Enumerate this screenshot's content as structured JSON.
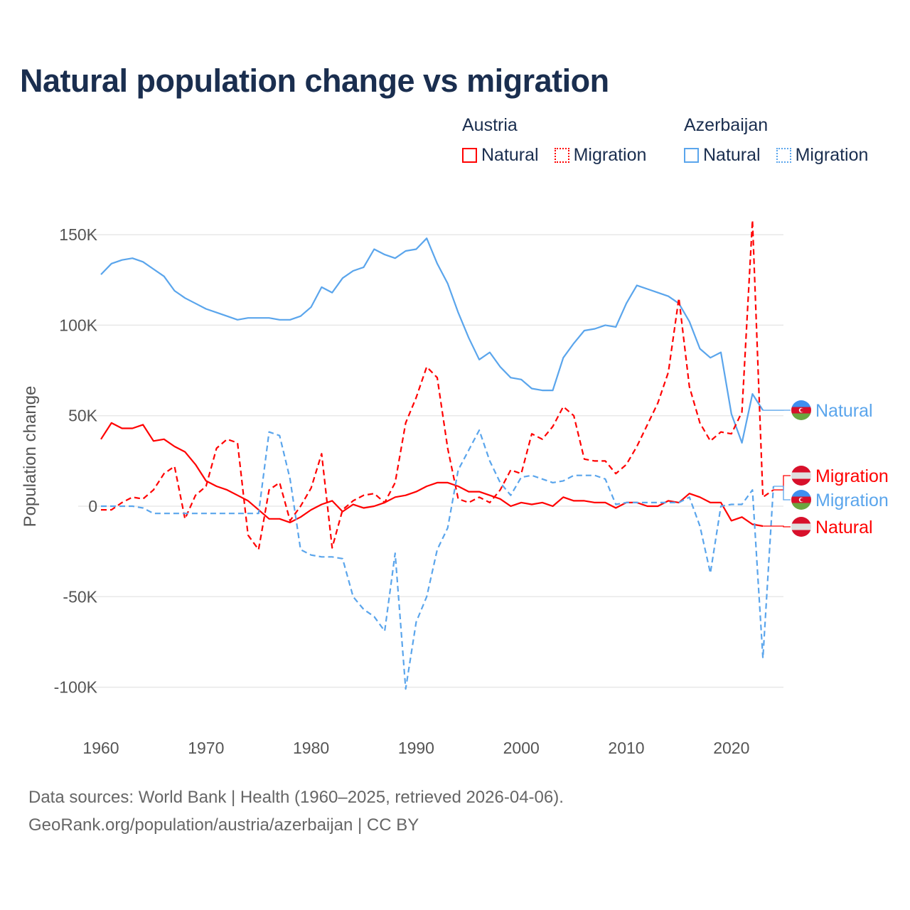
{
  "title": "Natural population change vs migration",
  "legend": {
    "groups": [
      {
        "name": "Austria",
        "items": [
          "Natural",
          "Migration"
        ],
        "color": "#ff0000"
      },
      {
        "name": "Azerbaijan",
        "items": [
          "Natural",
          "Migration"
        ],
        "color": "#5aa5ec"
      }
    ]
  },
  "source": {
    "line1": "Data sources: World Bank | Health (1960–2025, retrieved 2026-04-06).",
    "line2": "GeoRank.org/population/austria/azerbaijan | CC BY"
  },
  "chart_data": {
    "type": "line",
    "title": "Natural population change vs migration",
    "xlabel": "",
    "ylabel": "Population change",
    "xlim": [
      1960,
      2025
    ],
    "ylim": [
      -110000,
      160000
    ],
    "x_ticks": [
      1960,
      1970,
      1980,
      1990,
      2000,
      2010,
      2020
    ],
    "x_tick_labels": [
      "1960",
      "1970",
      "1980",
      "1990",
      "2000",
      "2010",
      "2020"
    ],
    "y_ticks": [
      150000,
      100000,
      50000,
      0,
      -50000,
      -100000
    ],
    "y_tick_labels": [
      "150K",
      "100K",
      "50K",
      "0",
      "-50K",
      "-100K"
    ],
    "grid": true,
    "legend_position": "top-right",
    "x_start": 1960,
    "series": [
      {
        "name": "Azerbaijan Natural",
        "end_label": "Natural",
        "country": "Azerbaijan",
        "color": "#5aa5ec",
        "dash": "solid",
        "values_k": [
          128,
          134,
          136,
          137,
          135,
          131,
          127,
          119,
          115,
          112,
          109,
          107,
          105,
          103,
          104,
          104,
          104,
          103,
          103,
          105,
          110,
          121,
          118,
          126,
          130,
          132,
          142,
          139,
          137,
          141,
          142,
          148,
          134,
          123,
          107,
          93,
          81,
          85,
          77,
          71,
          70,
          65,
          64,
          64,
          82,
          90,
          97,
          98,
          100,
          99,
          112,
          122,
          120,
          118,
          116,
          112,
          102,
          87,
          82,
          85,
          51,
          35,
          62,
          53
        ]
      },
      {
        "name": "Austria Natural",
        "end_label": "Natural",
        "country": "Austria",
        "color": "#ff0000",
        "dash": "solid",
        "values_k": [
          37,
          46,
          43,
          43,
          45,
          36,
          37,
          33,
          30,
          23,
          14,
          11,
          9,
          6,
          3,
          -2,
          -7,
          -7,
          -9,
          -6,
          -2,
          1,
          3,
          -3,
          1,
          -1,
          0,
          2,
          5,
          6,
          8,
          11,
          13,
          13,
          11,
          8,
          8,
          6,
          4,
          0,
          2,
          1,
          2,
          0,
          5,
          3,
          3,
          2,
          2,
          -1,
          2,
          2,
          0,
          0,
          3,
          2,
          7,
          5,
          2,
          2,
          -8,
          -6,
          -10,
          -11
        ]
      },
      {
        "name": "Austria Migration",
        "end_label": "Migration",
        "country": "Austria",
        "color": "#ff0000",
        "dash": "dashed",
        "values_k": [
          -2,
          -2,
          2,
          5,
          4,
          9,
          18,
          22,
          -7,
          6,
          11,
          32,
          37,
          35,
          -16,
          -24,
          9,
          13,
          -8,
          0,
          10,
          29,
          -23,
          -2,
          3,
          6,
          7,
          2,
          13,
          46,
          60,
          77,
          71,
          32,
          4,
          2,
          5,
          2,
          9,
          20,
          18,
          40,
          37,
          44,
          55,
          50,
          26,
          25,
          25,
          18,
          23,
          33,
          45,
          57,
          74,
          115,
          66,
          46,
          36,
          41,
          40,
          52,
          158,
          5,
          9
        ]
      },
      {
        "name": "Azerbaijan Migration",
        "end_label": "Migration",
        "country": "Azerbaijan",
        "color": "#5aa5ec",
        "dash": "dashed",
        "values_k": [
          0,
          0,
          0,
          0,
          -1,
          -4,
          -4,
          -4,
          -4,
          -4,
          -4,
          -4,
          -4,
          -4,
          -4,
          -4,
          41,
          39,
          15,
          -24,
          -27,
          -28,
          -28,
          -29,
          -50,
          -57,
          -61,
          -69,
          -26,
          -101,
          -64,
          -50,
          -24,
          -12,
          20,
          31,
          42,
          25,
          13,
          6,
          16,
          17,
          15,
          13,
          14,
          17,
          17,
          17,
          15,
          1,
          2,
          2,
          2,
          2,
          2,
          2,
          5,
          -11,
          -37,
          0,
          1,
          1,
          9,
          -84,
          11
        ]
      }
    ]
  }
}
